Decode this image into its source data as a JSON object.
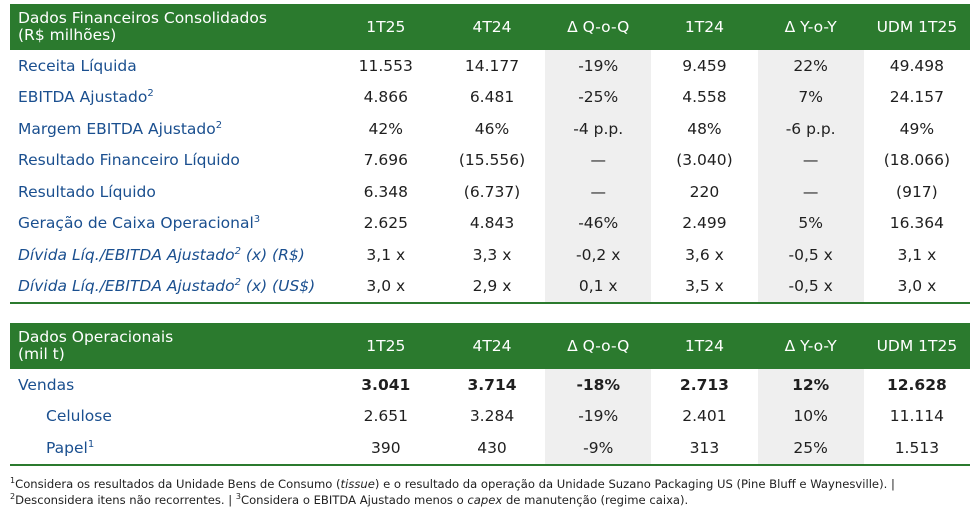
{
  "fin": {
    "title_line1": "Dados Financeiros Consolidados",
    "title_line2": "(R$ milhões)",
    "columns": [
      "1T25",
      "4T24",
      "Δ Q-o-Q",
      "1T24",
      "Δ Y-o-Y",
      "UDM 1T25"
    ],
    "rows": [
      {
        "label": "Receita Líquida",
        "sup": "",
        "suffix": "",
        "italic": false,
        "values": [
          "11.553",
          "14.177",
          "-19%",
          "9.459",
          "22%",
          "49.498"
        ]
      },
      {
        "label": "EBITDA Ajustado",
        "sup": "2",
        "suffix": "",
        "italic": false,
        "values": [
          "4.866",
          "6.481",
          "-25%",
          "4.558",
          "7%",
          "24.157"
        ]
      },
      {
        "label": "Margem EBITDA Ajustado",
        "sup": "2",
        "suffix": "",
        "italic": false,
        "values": [
          "42%",
          "46%",
          "-4 p.p.",
          "48%",
          "-6 p.p.",
          "49%"
        ]
      },
      {
        "label": "Resultado Financeiro Líquido",
        "sup": "",
        "suffix": "",
        "italic": false,
        "values": [
          "7.696",
          "(15.556)",
          "—",
          "(3.040)",
          "—",
          "(18.066)"
        ]
      },
      {
        "label": "Resultado Líquido",
        "sup": "",
        "suffix": "",
        "italic": false,
        "values": [
          "6.348",
          "(6.737)",
          "—",
          "220",
          "—",
          "(917)"
        ]
      },
      {
        "label": "Geração de Caixa Operacional",
        "sup": "3",
        "suffix": "",
        "italic": false,
        "values": [
          "2.625",
          "4.843",
          "-46%",
          "2.499",
          "5%",
          "16.364"
        ]
      },
      {
        "label": "Dívida Líq./EBITDA Ajustado",
        "sup": "2",
        "suffix": " (x) (R$)",
        "italic": true,
        "values": [
          "3,1 x",
          "3,3 x",
          "-0,2 x",
          "3,6 x",
          "-0,5 x",
          "3,1 x"
        ]
      },
      {
        "label": "Dívida Líq./EBITDA Ajustado",
        "sup": "2",
        "suffix": " (x) (US$)",
        "italic": true,
        "values": [
          "3,0 x",
          "2,9 x",
          "0,1 x",
          "3,5 x",
          "-0,5 x",
          "3,0 x"
        ]
      }
    ]
  },
  "ops": {
    "title_line1": "Dados Operacionais",
    "title_line2": "(mil t)",
    "columns": [
      "1T25",
      "4T24",
      "Δ Q-o-Q",
      "1T24",
      "Δ Y-o-Y",
      "UDM 1T25"
    ],
    "rows": [
      {
        "label": "Vendas",
        "sup": "",
        "indent": false,
        "bold": true,
        "values": [
          "3.041",
          "3.714",
          "-18%",
          "2.713",
          "12%",
          "12.628"
        ]
      },
      {
        "label": "Celulose",
        "sup": "",
        "indent": true,
        "bold": false,
        "values": [
          "2.651",
          "3.284",
          "-19%",
          "2.401",
          "10%",
          "11.114"
        ]
      },
      {
        "label": "Papel",
        "sup": "1",
        "indent": true,
        "bold": false,
        "values": [
          "390",
          "430",
          "-9%",
          "313",
          "25%",
          "1.513"
        ]
      }
    ]
  },
  "footnotes": {
    "n1_sup": "1",
    "n1_a": "Considera os resultados da Unidade Bens de Consumo (",
    "n1_tissue": "tissue",
    "n1_b": ") e o resultado da operação da Unidade Suzano Packaging US (Pine Bluff e Waynesville). | ",
    "n2_sup": "2",
    "n2": "Desconsidera itens não recorrentes. | ",
    "n3_sup": "3",
    "n3_a": "Considera o EBITDA Ajustado menos o ",
    "n3_capex": "capex",
    "n3_b": " de manutenção (regime caixa)."
  }
}
